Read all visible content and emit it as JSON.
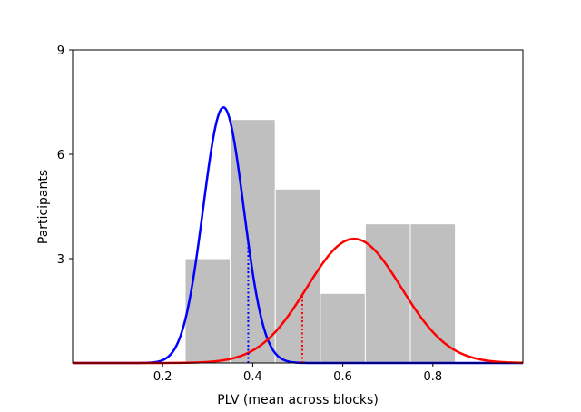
{
  "chart_data": {
    "type": "bar",
    "xlabel": "PLV (mean across blocks)",
    "ylabel": "Participants",
    "xlim": [
      0,
      1.0
    ],
    "ylim": [
      0,
      9
    ],
    "x_ticks": [
      0.2,
      0.4,
      0.6,
      0.8
    ],
    "x_tick_labels": [
      "0.2",
      "0.4",
      "0.6",
      "0.8"
    ],
    "y_ticks": [
      3,
      6,
      9
    ],
    "y_tick_labels": [
      "3",
      "6",
      "9"
    ],
    "grid": false,
    "histogram": {
      "bin_edges": [
        0.25,
        0.35,
        0.45,
        0.55,
        0.65,
        0.75,
        0.85
      ],
      "counts": [
        3,
        7,
        5,
        2,
        4,
        4
      ],
      "color": "#bfbfbf"
    },
    "fits": [
      {
        "color": "#0000ff",
        "mean": 0.335,
        "sd": 0.045,
        "peak": 7.35,
        "marker_x": 0.39,
        "marker_style": "dotted"
      },
      {
        "color": "#ff0000",
        "mean": 0.625,
        "sd": 0.105,
        "peak": 3.57,
        "marker_x": 0.51,
        "marker_style": "dotted"
      }
    ]
  }
}
